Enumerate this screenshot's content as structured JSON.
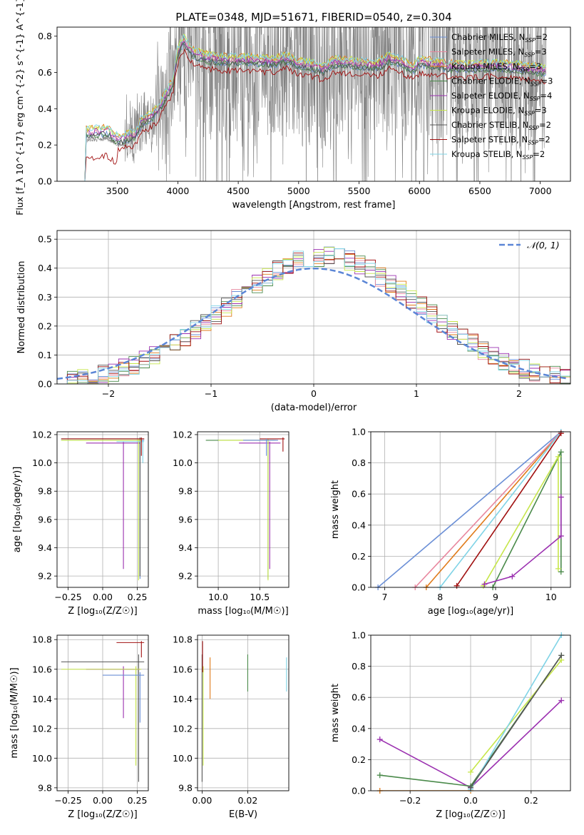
{
  "colors": {
    "chabrier_miles": "#6b8fd6",
    "salpeter_miles": "#e8879e",
    "kroupa_miles": "#e07b1a",
    "chabrier_elodie": "#4a8a4a",
    "salpeter_elodie": "#9b30b0",
    "kroupa_elodie": "#c6e64a",
    "chabrier_stelib": "#555555",
    "salpeter_stelib": "#a01010",
    "kroupa_stelib": "#7fd3e6",
    "data": "#808080",
    "normal": "#5b86d6"
  },
  "chart_data": [
    {
      "id": "spectrum",
      "type": "line",
      "title": "PLATE=0348, MJD=51671, FIBERID=0540, z=0.304",
      "xlabel": "wavelength [Angstrom, rest frame]",
      "ylabel": "Flux [f_λ 10^{-17} erg cm^{-2} s^{-1} A^{-1}]",
      "xlim": [
        3000,
        7250
      ],
      "ylim": [
        0,
        0.85
      ],
      "xticks": [
        "3500",
        "4000",
        "4500",
        "5000",
        "5500",
        "6000",
        "6500",
        "7000"
      ],
      "yticks": [
        "0.0",
        "0.2",
        "0.4",
        "0.6",
        "0.8"
      ],
      "legend": {
        "placement": "upper-right",
        "entries": [
          {
            "key": "chabrier_miles",
            "label": "Chabrier MILES, N",
            "sub": "SSP",
            "tail": "=2"
          },
          {
            "key": "salpeter_miles",
            "label": "Salpeter MILES, N",
            "sub": "SSP",
            "tail": "=3"
          },
          {
            "key": "kroupa_miles",
            "label": "Kroupa MILES, N",
            "sub": "SSP",
            "tail": "=3"
          },
          {
            "key": "chabrier_elodie",
            "label": "Chabrier ELODIE, N",
            "sub": "SSP",
            "tail": "=3"
          },
          {
            "key": "salpeter_elodie",
            "label": "Salpeter ELODIE, N",
            "sub": "SSP",
            "tail": "=4"
          },
          {
            "key": "kroupa_elodie",
            "label": "Kroupa ELODIE, N",
            "sub": "SSP",
            "tail": "=3"
          },
          {
            "key": "chabrier_stelib",
            "label": "Chabrier STELIB, N",
            "sub": "SSP",
            "tail": "=2"
          },
          {
            "key": "salpeter_stelib",
            "label": "Salpeter STELIB, N",
            "sub": "SSP",
            "tail": "=2"
          },
          {
            "key": "kroupa_stelib",
            "label": "Kroupa STELIB, N",
            "sub": "SSP",
            "tail": "=2"
          }
        ]
      },
      "data_range": [
        3250,
        7050
      ],
      "model_anchors": [
        [
          3230,
          0
        ],
        [
          3240,
          0.27
        ],
        [
          3420,
          0.28
        ],
        [
          3480,
          0.24
        ],
        [
          3550,
          0.24
        ],
        [
          3650,
          0.26
        ],
        [
          3700,
          0.33
        ],
        [
          3760,
          0.35
        ],
        [
          3830,
          0.39
        ],
        [
          3880,
          0.45
        ],
        [
          3920,
          0.5
        ],
        [
          3960,
          0.55
        ],
        [
          4000,
          0.72
        ],
        [
          4050,
          0.78
        ],
        [
          4120,
          0.71
        ],
        [
          4250,
          0.68
        ],
        [
          4400,
          0.67
        ],
        [
          4600,
          0.67
        ],
        [
          4800,
          0.66
        ],
        [
          4900,
          0.68
        ],
        [
          5000,
          0.65
        ],
        [
          5100,
          0.64
        ],
        [
          5200,
          0.62
        ],
        [
          5300,
          0.66
        ],
        [
          5500,
          0.65
        ],
        [
          5650,
          0.64
        ],
        [
          5750,
          0.68
        ],
        [
          5850,
          0.66
        ],
        [
          5950,
          0.62
        ],
        [
          6000,
          0.66
        ],
        [
          6200,
          0.64
        ],
        [
          6400,
          0.63
        ],
        [
          6600,
          0.64
        ],
        [
          6800,
          0.63
        ],
        [
          7050,
          0.61
        ]
      ]
    },
    {
      "id": "residuals",
      "type": "histogram",
      "xlabel": "(data-model)/error",
      "ylabel": "Normed distribution",
      "xlim": [
        -2.5,
        2.5
      ],
      "ylim": [
        0,
        0.53
      ],
      "xticks": [
        "−2",
        "−1",
        "0",
        "1",
        "2"
      ],
      "yticks": [
        "0.0",
        "0.1",
        "0.2",
        "0.3",
        "0.4",
        "0.5"
      ],
      "legend": {
        "placement": "upper-right",
        "label": "𝒩(0, 1)"
      },
      "bin_width": 0.1,
      "base_profile": {
        "peak": 0.44,
        "sigma": 0.95,
        "center": 0.1
      }
    },
    {
      "id": "age_vs_Z",
      "type": "scatter",
      "xlabel": "Z [log₁₀(Z/Z☉)]",
      "ylabel": "age  [log₁₀(age/yr)]",
      "xlim": [
        -0.33,
        0.33
      ],
      "ylim": [
        9.12,
        10.22
      ],
      "xticks": [
        "−0.25",
        "0.00",
        "0.25"
      ],
      "yticks": [
        "9.2",
        "9.4",
        "9.6",
        "9.8",
        "10.0",
        "10.2"
      ],
      "errorbars": [
        {
          "key": "chabrier_miles",
          "x": 0.27,
          "y": 10.16,
          "xlo": -0.3,
          "xhi": 0.3,
          "ylo": 9.18,
          "yhi": 10.17
        },
        {
          "key": "salpeter_elodie",
          "x": 0.15,
          "y": 10.14,
          "xlo": -0.12,
          "xhi": 0.27,
          "ylo": 9.25,
          "yhi": 10.15
        },
        {
          "key": "chabrier_stelib",
          "x": 0.27,
          "y": 10.17,
          "xlo": -0.3,
          "xhi": 0.3,
          "ylo": 9.2,
          "yhi": 10.18
        },
        {
          "key": "kroupa_elodie",
          "x": 0.26,
          "y": 10.16,
          "xlo": -0.3,
          "xhi": 0.28,
          "ylo": 9.17,
          "yhi": 10.17
        },
        {
          "key": "kroupa_stelib",
          "x": 0.29,
          "y": 10.15,
          "xlo": 0.1,
          "xhi": 0.3,
          "ylo": 10.0,
          "yhi": 10.16
        },
        {
          "key": "salpeter_stelib",
          "x": 0.28,
          "y": 10.17,
          "xlo": -0.3,
          "xhi": 0.3,
          "ylo": 10.05,
          "yhi": 10.18
        }
      ]
    },
    {
      "id": "age_vs_mass",
      "type": "scatter",
      "xlabel": "mass [log₁₀(M/M☉)]",
      "ylabel": "",
      "xlim": [
        9.75,
        10.85
      ],
      "ylim": [
        9.12,
        10.22
      ],
      "xticks": [
        "10.0",
        "10.5"
      ],
      "yticks": [
        "9.2",
        "9.4",
        "9.6",
        "9.8",
        "10.0",
        "10.2"
      ],
      "errorbars": [
        {
          "key": "chabrier_elodie",
          "x": 10.6,
          "y": 10.16,
          "xlo": 9.85,
          "xhi": 10.68,
          "ylo": 9.18,
          "yhi": 10.17
        },
        {
          "key": "salpeter_elodie",
          "x": 10.62,
          "y": 10.14,
          "xlo": 10.25,
          "xhi": 10.75,
          "ylo": 9.25,
          "yhi": 10.15
        },
        {
          "key": "kroupa_elodie",
          "x": 10.6,
          "y": 10.16,
          "xlo": 10.0,
          "xhi": 10.7,
          "ylo": 9.17,
          "yhi": 10.17
        },
        {
          "key": "salpeter_stelib",
          "x": 10.78,
          "y": 10.17,
          "xlo": 10.5,
          "xhi": 10.8,
          "ylo": 10.08,
          "yhi": 10.18
        },
        {
          "key": "chabrier_miles",
          "x": 10.58,
          "y": 10.16,
          "xlo": 10.3,
          "xhi": 10.72,
          "ylo": 10.05,
          "yhi": 10.17
        }
      ]
    },
    {
      "id": "weight_vs_age",
      "type": "line",
      "xlabel": "age  [log₁₀(age/yr)]",
      "ylabel": "mass weight",
      "xlim": [
        6.75,
        10.35
      ],
      "ylim": [
        0,
        1
      ],
      "xticks": [
        "7",
        "8",
        "9",
        "10"
      ],
      "yticks": [
        "0.0",
        "0.2",
        "0.4",
        "0.6",
        "0.8",
        "1.0"
      ],
      "series": [
        {
          "key": "chabrier_miles",
          "points": [
            [
              6.88,
              0
            ],
            [
              10.18,
              1.0
            ]
          ]
        },
        {
          "key": "kroupa_miles",
          "points": [
            [
              7.75,
              0
            ],
            [
              10.18,
              1.0
            ]
          ]
        },
        {
          "key": "salpeter_miles",
          "points": [
            [
              7.55,
              0
            ],
            [
              10.18,
              1.0
            ]
          ]
        },
        {
          "key": "kroupa_stelib",
          "points": [
            [
              8.0,
              0
            ],
            [
              10.18,
              1.0
            ]
          ]
        },
        {
          "key": "salpeter_stelib",
          "points": [
            [
              8.3,
              0.01
            ],
            [
              10.18,
              0.99
            ]
          ]
        },
        {
          "key": "chabrier_elodie",
          "points": [
            [
              8.95,
              0
            ],
            [
              10.18,
              0.87
            ],
            [
              10.18,
              0.1
            ]
          ]
        },
        {
          "key": "kroupa_elodie",
          "points": [
            [
              8.78,
              0.01
            ],
            [
              10.13,
              0.84
            ],
            [
              10.13,
              0.12
            ]
          ]
        },
        {
          "key": "salpeter_elodie",
          "points": [
            [
              8.8,
              0.02
            ],
            [
              9.3,
              0.07
            ],
            [
              10.18,
              0.33
            ],
            [
              10.18,
              0.58
            ]
          ]
        }
      ]
    },
    {
      "id": "mass_vs_Z",
      "type": "scatter",
      "xlabel": "Z [log₁₀(Z/Z☉)]",
      "ylabel": "mass [log₁₀(M/M☉)]",
      "xlim": [
        -0.33,
        0.33
      ],
      "ylim": [
        9.78,
        10.83
      ],
      "xticks": [
        "−0.25",
        "0.00",
        "0.25"
      ],
      "yticks": [
        "9.8",
        "10.0",
        "10.2",
        "10.4",
        "10.6",
        "10.8"
      ],
      "errorbars": [
        {
          "key": "chabrier_stelib",
          "x": 0.26,
          "y": 10.65,
          "xlo": -0.3,
          "xhi": 0.3,
          "ylo": 9.84,
          "yhi": 10.7
        },
        {
          "key": "salpeter_elodie",
          "x": 0.15,
          "y": 10.6,
          "xlo": -0.12,
          "xhi": 0.27,
          "ylo": 10.27,
          "yhi": 10.62
        },
        {
          "key": "kroupa_elodie",
          "x": 0.24,
          "y": 10.6,
          "xlo": -0.3,
          "xhi": 0.28,
          "ylo": 9.95,
          "yhi": 10.62
        },
        {
          "key": "chabrier_miles",
          "x": 0.27,
          "y": 10.56,
          "xlo": 0.0,
          "xhi": 0.3,
          "ylo": 10.24,
          "yhi": 10.58
        },
        {
          "key": "salpeter_stelib",
          "x": 0.28,
          "y": 10.78,
          "xlo": 0.1,
          "xhi": 0.3,
          "ylo": 10.68,
          "yhi": 10.79
        }
      ]
    },
    {
      "id": "mass_vs_ebv",
      "type": "scatter",
      "xlabel": "E(B-V)",
      "ylabel": "",
      "xlim": [
        -0.002,
        0.038
      ],
      "ylim": [
        9.78,
        10.83
      ],
      "xticks": [
        "0.00",
        "0.02"
      ],
      "yticks": [
        "9.8",
        "10.0",
        "10.2",
        "10.4",
        "10.6",
        "10.8"
      ],
      "vbars": [
        {
          "key": "chabrier_stelib",
          "x": 0.0,
          "ylo": 9.84,
          "yhi": 10.7
        },
        {
          "key": "kroupa_elodie",
          "x": 0.0005,
          "ylo": 9.95,
          "yhi": 10.62
        },
        {
          "key": "salpeter_stelib",
          "x": 0.0002,
          "ylo": 10.58,
          "yhi": 10.79
        },
        {
          "key": "kroupa_miles",
          "x": 0.0035,
          "ylo": 10.4,
          "yhi": 10.68
        },
        {
          "key": "chabrier_elodie",
          "x": 0.02,
          "ylo": 10.45,
          "yhi": 10.7
        },
        {
          "key": "kroupa_stelib",
          "x": 0.037,
          "ylo": 10.45,
          "yhi": 10.68
        }
      ]
    },
    {
      "id": "weight_vs_Z",
      "type": "line",
      "xlabel": "Z [log₁₀(Z/Z☉)]",
      "ylabel": "mass weight",
      "xlim": [
        -0.33,
        0.33
      ],
      "ylim": [
        0,
        1
      ],
      "xticks": [
        "−0.2",
        "0.0",
        "0.2"
      ],
      "yticks": [
        "0.0",
        "0.2",
        "0.4",
        "0.6",
        "0.8",
        "1.0"
      ],
      "series": [
        {
          "key": "salpeter_elodie",
          "points": [
            [
              -0.3,
              0.33
            ],
            [
              0.0,
              0.02
            ],
            [
              0.3,
              0.58
            ]
          ]
        },
        {
          "key": "chabrier_elodie",
          "points": [
            [
              -0.3,
              0.1
            ],
            [
              0.0,
              0.03
            ],
            [
              0.3,
              0.87
            ]
          ]
        },
        {
          "key": "kroupa_elodie",
          "points": [
            [
              0.0,
              0.12
            ],
            [
              0.3,
              0.84
            ]
          ]
        },
        {
          "key": "kroupa_miles",
          "points": [
            [
              -0.3,
              0.0
            ],
            [
              0.0,
              0.0
            ]
          ]
        },
        {
          "key": "kroupa_stelib",
          "points": [
            [
              0.0,
              0.01
            ],
            [
              0.3,
              1.0
            ]
          ]
        },
        {
          "key": "chabrier_stelib",
          "points": [
            [
              0.0,
              0.02
            ],
            [
              0.3,
              0.87
            ]
          ]
        }
      ]
    }
  ]
}
